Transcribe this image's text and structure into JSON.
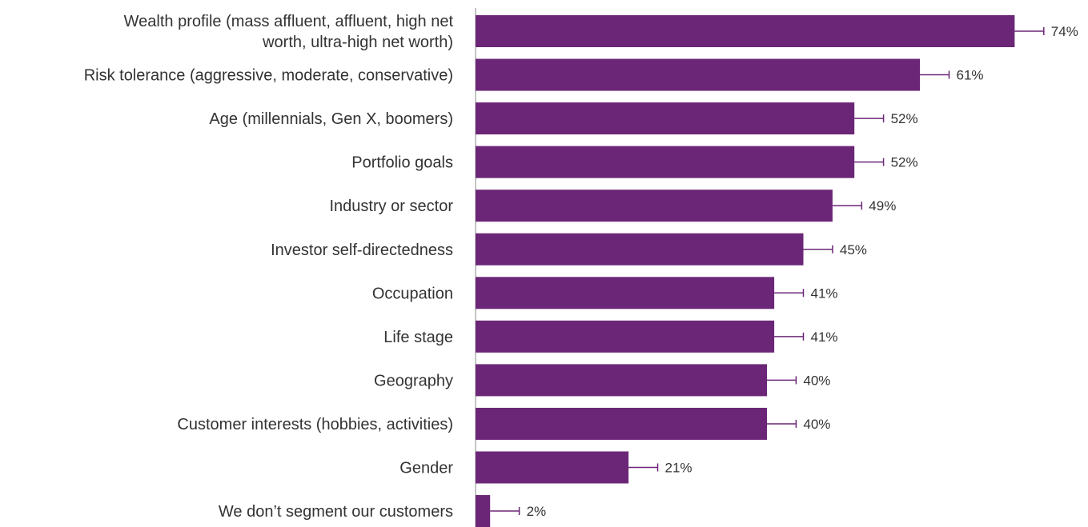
{
  "chart_data": {
    "type": "bar",
    "orientation": "horizontal",
    "categories": [
      [
        "Wealth profile (mass affluent, affluent, high net",
        "worth, ultra-high net worth)"
      ],
      [
        "Risk tolerance (aggressive, moderate, conservative)"
      ],
      [
        "Age (millennials, Gen X, boomers)"
      ],
      [
        "Portfolio goals"
      ],
      [
        "Industry or sector"
      ],
      [
        "Investor self-directedness"
      ],
      [
        "Occupation"
      ],
      [
        "Life stage"
      ],
      [
        "Geography"
      ],
      [
        "Customer interests (hobbies, activities)"
      ],
      [
        "Gender"
      ],
      [
        "We don’t segment our customers"
      ]
    ],
    "values": [
      74,
      61,
      52,
      52,
      49,
      45,
      41,
      41,
      40,
      40,
      21,
      2
    ],
    "value_labels": [
      "74%",
      "61%",
      "52%",
      "52%",
      "49%",
      "45%",
      "41%",
      "41%",
      "40%",
      "40%",
      "21%",
      "2%"
    ],
    "error_bar": 4,
    "xlim": [
      0,
      100
    ],
    "grid": false,
    "legend": "none",
    "bar_color": "#6b2677",
    "axis_color": "#888888",
    "text_color": "#333333"
  }
}
